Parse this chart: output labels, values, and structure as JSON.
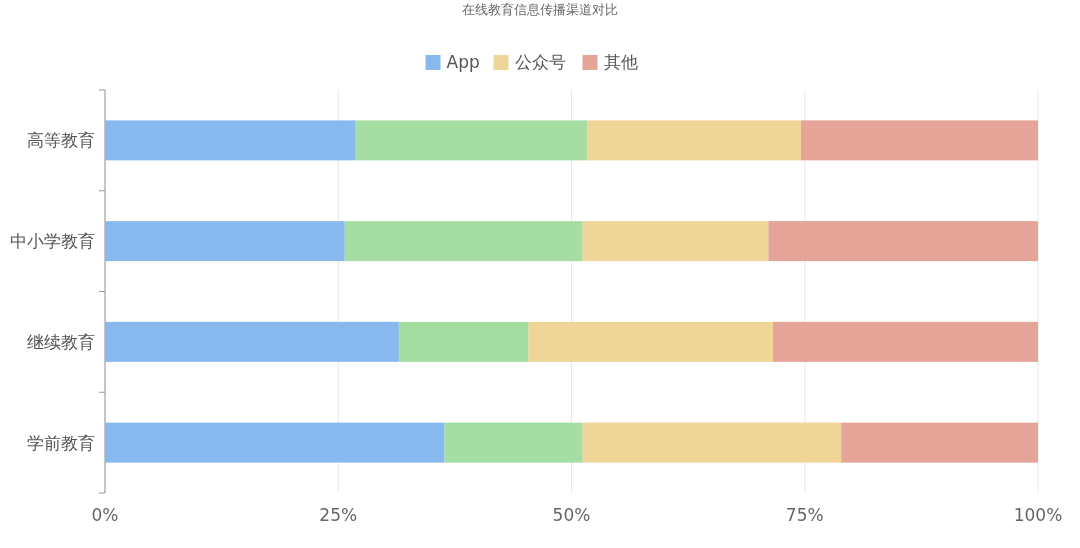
{
  "chart_data": {
    "type": "bar",
    "title": "在线教育信息传播渠道对比",
    "orientation": "horizontal",
    "stacked": true,
    "categories": [
      "高等教育",
      "中小学教育",
      "继续教育",
      "学前教育"
    ],
    "series": [
      {
        "name": "App",
        "color": "#88b9ee",
        "values": [
          26.8,
          25.7,
          31.5,
          36.4
        ]
      },
      {
        "color": "#a6dda3",
        "values": [
          24.9,
          25.5,
          13.9,
          14.8
        ]
      },
      {
        "name": "公众号",
        "color": "#f0d598",
        "values": [
          22.9,
          19.9,
          26.2,
          27.7
        ]
      },
      {
        "name": "其他",
        "color": "#e4a497",
        "values": [
          25.4,
          28.9,
          28.4,
          21.1
        ]
      }
    ],
    "xlim": [
      0,
      100
    ],
    "xticks": [
      {
        "value": 0,
        "label": "0%"
      },
      {
        "value": 25,
        "label": "25%"
      },
      {
        "value": 50,
        "label": "50%"
      },
      {
        "value": 75,
        "label": "75%"
      },
      {
        "value": 100,
        "label": "100%"
      }
    ],
    "grid": "x",
    "legend": "top"
  }
}
